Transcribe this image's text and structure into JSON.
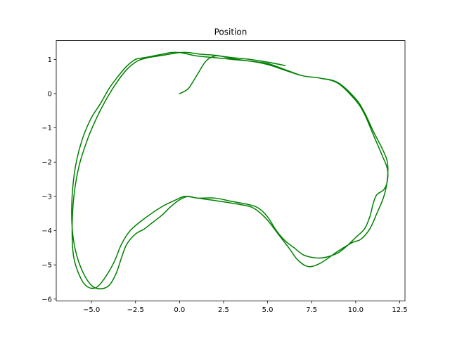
{
  "chart_data": {
    "type": "line",
    "title": "Position",
    "xlabel": "",
    "ylabel": "",
    "xlim": [
      -7.0,
      12.8
    ],
    "ylim": [
      -6.05,
      1.55
    ],
    "xticks": [
      -5.0,
      -2.5,
      0.0,
      2.5,
      5.0,
      7.5,
      10.0,
      12.5
    ],
    "xtick_labels": [
      "−5.0",
      "−2.5",
      "0.0",
      "2.5",
      "5.0",
      "7.5",
      "10.0",
      "12.5"
    ],
    "yticks": [
      -6,
      -5,
      -4,
      -3,
      -2,
      -1,
      0,
      1
    ],
    "ytick_labels": [
      "−6",
      "−5",
      "−4",
      "−3",
      "−2",
      "−1",
      "0",
      "1"
    ],
    "grid": false,
    "series": [
      {
        "color": "#008000",
        "x": [
          0.0,
          0.5,
          1.0,
          1.5,
          2.0,
          2.5,
          3.0,
          4.0,
          5.0,
          6.0,
          7.0,
          8.0,
          9.0,
          10.0,
          10.5,
          11.0,
          11.5,
          11.8,
          11.8,
          11.6,
          11.2,
          11.0,
          10.8,
          10.5,
          10.0,
          9.5,
          9.0,
          8.5,
          8.0,
          7.5,
          7.0,
          6.5,
          6.0,
          5.5,
          5.0,
          4.5,
          4.0,
          3.0,
          2.0,
          1.0,
          0.5,
          0.0,
          -0.5,
          -1.0,
          -1.5,
          -2.0,
          -2.5,
          -3.0,
          -3.3,
          -3.6,
          -4.0,
          -4.5,
          -5.0,
          -5.5,
          -5.9,
          -6.1,
          -6.1,
          -5.9,
          -5.5,
          -5.0,
          -4.5,
          -4.0,
          -3.5,
          -3.0,
          -2.5,
          -2.0,
          -1.5,
          -1.0,
          -0.5,
          0.0,
          0.5,
          1.0,
          2.0,
          3.0,
          4.0,
          5.0,
          6.0,
          7.0,
          8.0,
          9.0,
          10.0,
          10.5,
          11.0,
          11.5,
          11.8,
          11.8,
          11.6,
          11.2,
          10.8,
          10.3,
          9.8,
          9.0,
          8.0,
          7.3,
          6.7,
          6.2,
          5.6,
          5.0,
          4.5,
          4.0,
          3.0,
          2.0,
          1.0,
          0.3,
          -0.2,
          -1.0,
          -2.0,
          -2.8,
          -3.3,
          -3.7,
          -4.2,
          -4.7,
          -5.2,
          -5.6,
          -6.0,
          -6.1,
          -6.0,
          -5.7,
          -5.2,
          -4.7,
          -4.2,
          -3.6,
          -3.0,
          -2.4,
          -1.8,
          -1.2,
          -0.6,
          0.0,
          0.5,
          1.2,
          2.0,
          3.0,
          4.0,
          5.0,
          6.0
        ],
        "y": [
          0.0,
          0.15,
          0.55,
          0.95,
          1.1,
          1.08,
          1.02,
          0.95,
          0.88,
          0.7,
          0.52,
          0.45,
          0.3,
          -0.2,
          -0.6,
          -1.2,
          -1.8,
          -2.2,
          -2.55,
          -2.8,
          -2.95,
          -3.2,
          -3.6,
          -3.95,
          -4.2,
          -4.45,
          -4.65,
          -4.75,
          -4.8,
          -4.78,
          -4.7,
          -4.5,
          -4.3,
          -4.0,
          -3.6,
          -3.35,
          -3.25,
          -3.15,
          -3.05,
          -3.05,
          -3.0,
          -3.1,
          -3.3,
          -3.55,
          -3.75,
          -3.95,
          -4.1,
          -4.4,
          -4.8,
          -5.25,
          -5.6,
          -5.7,
          -5.6,
          -5.2,
          -4.6,
          -3.9,
          -3.0,
          -2.1,
          -1.3,
          -0.7,
          -0.3,
          0.15,
          0.5,
          0.8,
          1.0,
          1.05,
          1.1,
          1.15,
          1.2,
          1.2,
          1.15,
          1.1,
          1.05,
          1.0,
          0.95,
          0.85,
          0.68,
          0.52,
          0.45,
          0.32,
          -0.15,
          -0.55,
          -1.1,
          -1.6,
          -2.0,
          -2.5,
          -3.0,
          -3.5,
          -3.95,
          -4.25,
          -4.35,
          -4.6,
          -4.95,
          -5.05,
          -4.85,
          -4.5,
          -4.1,
          -3.7,
          -3.45,
          -3.3,
          -3.2,
          -3.12,
          -3.05,
          -3.0,
          -3.1,
          -3.3,
          -3.65,
          -4.0,
          -4.4,
          -4.9,
          -5.35,
          -5.65,
          -5.65,
          -5.4,
          -4.8,
          -4.0,
          -3.0,
          -2.1,
          -1.3,
          -0.7,
          -0.2,
          0.3,
          0.7,
          0.95,
          1.05,
          1.1,
          1.15,
          1.2,
          1.2,
          1.15,
          1.12,
          1.05,
          1.0,
          0.92,
          0.82
        ]
      }
    ]
  }
}
